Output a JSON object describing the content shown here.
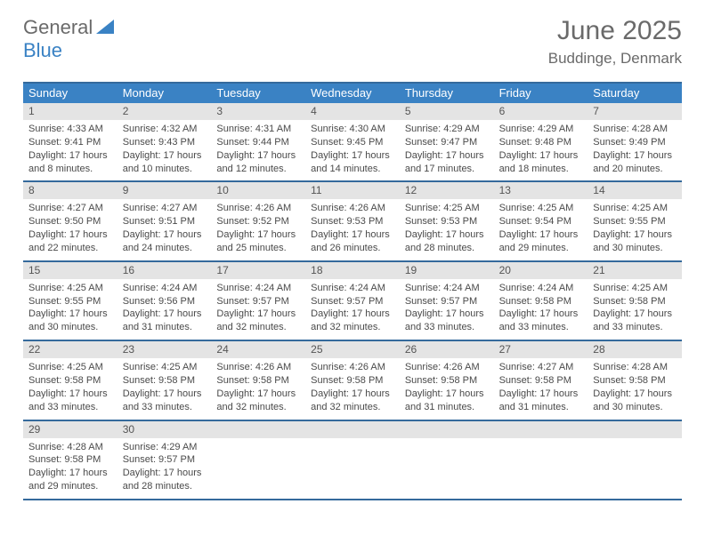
{
  "logo": {
    "part1": "General",
    "part2": "Blue"
  },
  "title": "June 2025",
  "location": "Buddinge, Denmark",
  "colors": {
    "header_bg": "#3a82c4",
    "header_border": "#356a9c",
    "daynum_band": "#e4e4e4",
    "text": "#4a4a4a",
    "title_text": "#6a6a6a"
  },
  "day_headers": [
    "Sunday",
    "Monday",
    "Tuesday",
    "Wednesday",
    "Thursday",
    "Friday",
    "Saturday"
  ],
  "weeks": [
    [
      {
        "n": "1",
        "sr": "Sunrise: 4:33 AM",
        "ss": "Sunset: 9:41 PM",
        "d1": "Daylight: 17 hours",
        "d2": "and 8 minutes."
      },
      {
        "n": "2",
        "sr": "Sunrise: 4:32 AM",
        "ss": "Sunset: 9:43 PM",
        "d1": "Daylight: 17 hours",
        "d2": "and 10 minutes."
      },
      {
        "n": "3",
        "sr": "Sunrise: 4:31 AM",
        "ss": "Sunset: 9:44 PM",
        "d1": "Daylight: 17 hours",
        "d2": "and 12 minutes."
      },
      {
        "n": "4",
        "sr": "Sunrise: 4:30 AM",
        "ss": "Sunset: 9:45 PM",
        "d1": "Daylight: 17 hours",
        "d2": "and 14 minutes."
      },
      {
        "n": "5",
        "sr": "Sunrise: 4:29 AM",
        "ss": "Sunset: 9:47 PM",
        "d1": "Daylight: 17 hours",
        "d2": "and 17 minutes."
      },
      {
        "n": "6",
        "sr": "Sunrise: 4:29 AM",
        "ss": "Sunset: 9:48 PM",
        "d1": "Daylight: 17 hours",
        "d2": "and 18 minutes."
      },
      {
        "n": "7",
        "sr": "Sunrise: 4:28 AM",
        "ss": "Sunset: 9:49 PM",
        "d1": "Daylight: 17 hours",
        "d2": "and 20 minutes."
      }
    ],
    [
      {
        "n": "8",
        "sr": "Sunrise: 4:27 AM",
        "ss": "Sunset: 9:50 PM",
        "d1": "Daylight: 17 hours",
        "d2": "and 22 minutes."
      },
      {
        "n": "9",
        "sr": "Sunrise: 4:27 AM",
        "ss": "Sunset: 9:51 PM",
        "d1": "Daylight: 17 hours",
        "d2": "and 24 minutes."
      },
      {
        "n": "10",
        "sr": "Sunrise: 4:26 AM",
        "ss": "Sunset: 9:52 PM",
        "d1": "Daylight: 17 hours",
        "d2": "and 25 minutes."
      },
      {
        "n": "11",
        "sr": "Sunrise: 4:26 AM",
        "ss": "Sunset: 9:53 PM",
        "d1": "Daylight: 17 hours",
        "d2": "and 26 minutes."
      },
      {
        "n": "12",
        "sr": "Sunrise: 4:25 AM",
        "ss": "Sunset: 9:53 PM",
        "d1": "Daylight: 17 hours",
        "d2": "and 28 minutes."
      },
      {
        "n": "13",
        "sr": "Sunrise: 4:25 AM",
        "ss": "Sunset: 9:54 PM",
        "d1": "Daylight: 17 hours",
        "d2": "and 29 minutes."
      },
      {
        "n": "14",
        "sr": "Sunrise: 4:25 AM",
        "ss": "Sunset: 9:55 PM",
        "d1": "Daylight: 17 hours",
        "d2": "and 30 minutes."
      }
    ],
    [
      {
        "n": "15",
        "sr": "Sunrise: 4:25 AM",
        "ss": "Sunset: 9:55 PM",
        "d1": "Daylight: 17 hours",
        "d2": "and 30 minutes."
      },
      {
        "n": "16",
        "sr": "Sunrise: 4:24 AM",
        "ss": "Sunset: 9:56 PM",
        "d1": "Daylight: 17 hours",
        "d2": "and 31 minutes."
      },
      {
        "n": "17",
        "sr": "Sunrise: 4:24 AM",
        "ss": "Sunset: 9:57 PM",
        "d1": "Daylight: 17 hours",
        "d2": "and 32 minutes."
      },
      {
        "n": "18",
        "sr": "Sunrise: 4:24 AM",
        "ss": "Sunset: 9:57 PM",
        "d1": "Daylight: 17 hours",
        "d2": "and 32 minutes."
      },
      {
        "n": "19",
        "sr": "Sunrise: 4:24 AM",
        "ss": "Sunset: 9:57 PM",
        "d1": "Daylight: 17 hours",
        "d2": "and 33 minutes."
      },
      {
        "n": "20",
        "sr": "Sunrise: 4:24 AM",
        "ss": "Sunset: 9:58 PM",
        "d1": "Daylight: 17 hours",
        "d2": "and 33 minutes."
      },
      {
        "n": "21",
        "sr": "Sunrise: 4:25 AM",
        "ss": "Sunset: 9:58 PM",
        "d1": "Daylight: 17 hours",
        "d2": "and 33 minutes."
      }
    ],
    [
      {
        "n": "22",
        "sr": "Sunrise: 4:25 AM",
        "ss": "Sunset: 9:58 PM",
        "d1": "Daylight: 17 hours",
        "d2": "and 33 minutes."
      },
      {
        "n": "23",
        "sr": "Sunrise: 4:25 AM",
        "ss": "Sunset: 9:58 PM",
        "d1": "Daylight: 17 hours",
        "d2": "and 33 minutes."
      },
      {
        "n": "24",
        "sr": "Sunrise: 4:26 AM",
        "ss": "Sunset: 9:58 PM",
        "d1": "Daylight: 17 hours",
        "d2": "and 32 minutes."
      },
      {
        "n": "25",
        "sr": "Sunrise: 4:26 AM",
        "ss": "Sunset: 9:58 PM",
        "d1": "Daylight: 17 hours",
        "d2": "and 32 minutes."
      },
      {
        "n": "26",
        "sr": "Sunrise: 4:26 AM",
        "ss": "Sunset: 9:58 PM",
        "d1": "Daylight: 17 hours",
        "d2": "and 31 minutes."
      },
      {
        "n": "27",
        "sr": "Sunrise: 4:27 AM",
        "ss": "Sunset: 9:58 PM",
        "d1": "Daylight: 17 hours",
        "d2": "and 31 minutes."
      },
      {
        "n": "28",
        "sr": "Sunrise: 4:28 AM",
        "ss": "Sunset: 9:58 PM",
        "d1": "Daylight: 17 hours",
        "d2": "and 30 minutes."
      }
    ],
    [
      {
        "n": "29",
        "sr": "Sunrise: 4:28 AM",
        "ss": "Sunset: 9:58 PM",
        "d1": "Daylight: 17 hours",
        "d2": "and 29 minutes."
      },
      {
        "n": "30",
        "sr": "Sunrise: 4:29 AM",
        "ss": "Sunset: 9:57 PM",
        "d1": "Daylight: 17 hours",
        "d2": "and 28 minutes."
      },
      {
        "empty": true
      },
      {
        "empty": true
      },
      {
        "empty": true
      },
      {
        "empty": true
      },
      {
        "empty": true
      }
    ]
  ]
}
